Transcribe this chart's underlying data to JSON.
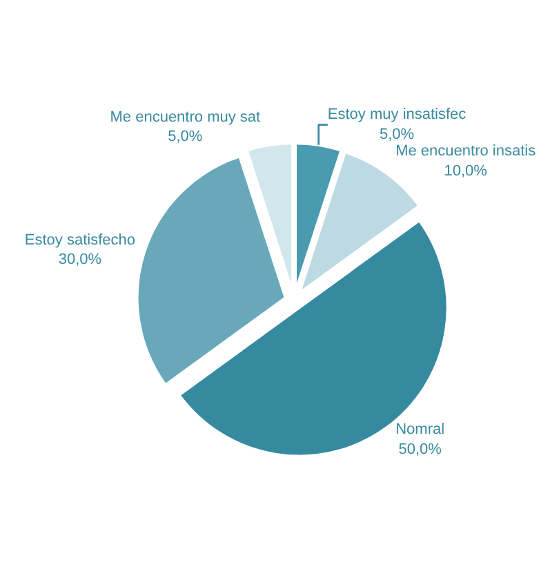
{
  "chart_data": {
    "type": "pie",
    "categories": [
      "Estoy muy insatisfec",
      "Me encuentro insatis",
      "Nomral",
      "Estoy satisfecho",
      "Me encuentro muy sat"
    ],
    "values": [
      5,
      10,
      50,
      30,
      5
    ],
    "value_labels": [
      "5,0%",
      "10,0%",
      "50,0%",
      "30,0%",
      "5,0%"
    ],
    "colors": [
      "#4a9bb0",
      "#bddae2",
      "#368aa0",
      "#68a8b9",
      "#d2e7ec"
    ],
    "legend": false
  }
}
